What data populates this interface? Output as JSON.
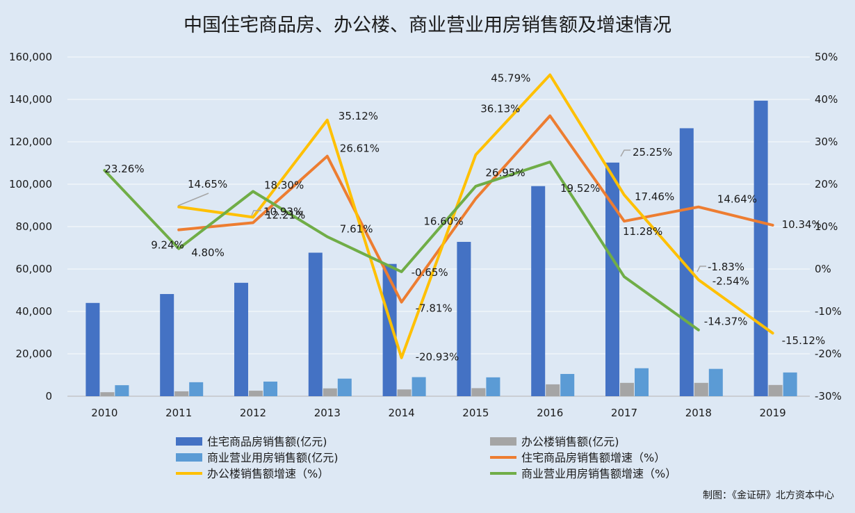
{
  "chart_data": {
    "type": "bar",
    "title": "中国住宅商品房、办公楼、商业营业用房销售额及增速情况",
    "categories": [
      "2010",
      "2011",
      "2012",
      "2013",
      "2014",
      "2015",
      "2016",
      "2017",
      "2018",
      "2019"
    ],
    "y_left": {
      "ticks": [
        "0",
        "20,000",
        "40,000",
        "60,000",
        "80,000",
        "100,000",
        "120,000",
        "140,000",
        "160,000"
      ],
      "ylim": [
        0,
        160000
      ]
    },
    "y_right": {
      "ticks": [
        "-30%",
        "-20%",
        "-10%",
        "0%",
        "10%",
        "20%",
        "30%",
        "40%",
        "50%"
      ],
      "ylim": [
        -30,
        50
      ]
    },
    "grid": true,
    "legend_position": "bottom",
    "bar_series": [
      {
        "name": "住宅商品房销售额(亿元)",
        "color": "#4472c4",
        "values": [
          44000,
          48200,
          53500,
          67700,
          62400,
          72800,
          99100,
          110200,
          126400,
          139400
        ]
      },
      {
        "name": "办公楼销售额(亿元)",
        "color": "#a5a5a5",
        "values": [
          1900,
          2300,
          2600,
          3700,
          3200,
          3800,
          5600,
          6300,
          6300,
          5300
        ]
      },
      {
        "name": "商业营业用房销售额(亿元)",
        "color": "#5b9bd5",
        "values": [
          5200,
          6600,
          6900,
          8300,
          9000,
          8900,
          10500,
          13200,
          12900,
          11200
        ]
      }
    ],
    "line_series": [
      {
        "name": "住宅商品房销售额增速（%）",
        "color": "#ed7d31",
        "start_index": 1,
        "values": [
          9.24,
          10.93,
          26.61,
          -7.81,
          16.6,
          36.13,
          11.28,
          14.64,
          10.34
        ],
        "labels": [
          "9.24%",
          "10.93%",
          "26.61%",
          "-7.81%",
          "16.60%",
          "36.13%",
          "11.28%",
          "14.64%",
          "10.34%"
        ]
      },
      {
        "name": "办公楼销售额增速（%）",
        "color": "#ffc000",
        "start_index": 1,
        "values": [
          14.65,
          12.21,
          35.12,
          -20.93,
          26.95,
          45.79,
          17.46,
          -2.54,
          -15.12
        ],
        "labels": [
          "14.65%",
          "12.21%",
          "35.12%",
          "-20.93%",
          "26.95%",
          "45.79%",
          "17.46%",
          "-2.54%",
          "-15.12%"
        ]
      },
      {
        "name": "商业营业用房销售额增速（%）",
        "color": "#70ad47",
        "start_index": 0,
        "values": [
          23.26,
          4.8,
          18.3,
          7.61,
          -0.65,
          19.52,
          25.25,
          -1.83,
          -14.37
        ],
        "labels": [
          "23.26%",
          "4.80%",
          "18.30%",
          "7.61%",
          "-0.65%",
          "19.52%",
          "25.25%",
          "-1.83%",
          "-14.37%"
        ]
      }
    ]
  },
  "credit": "制图：《金证研》北方资本中心"
}
